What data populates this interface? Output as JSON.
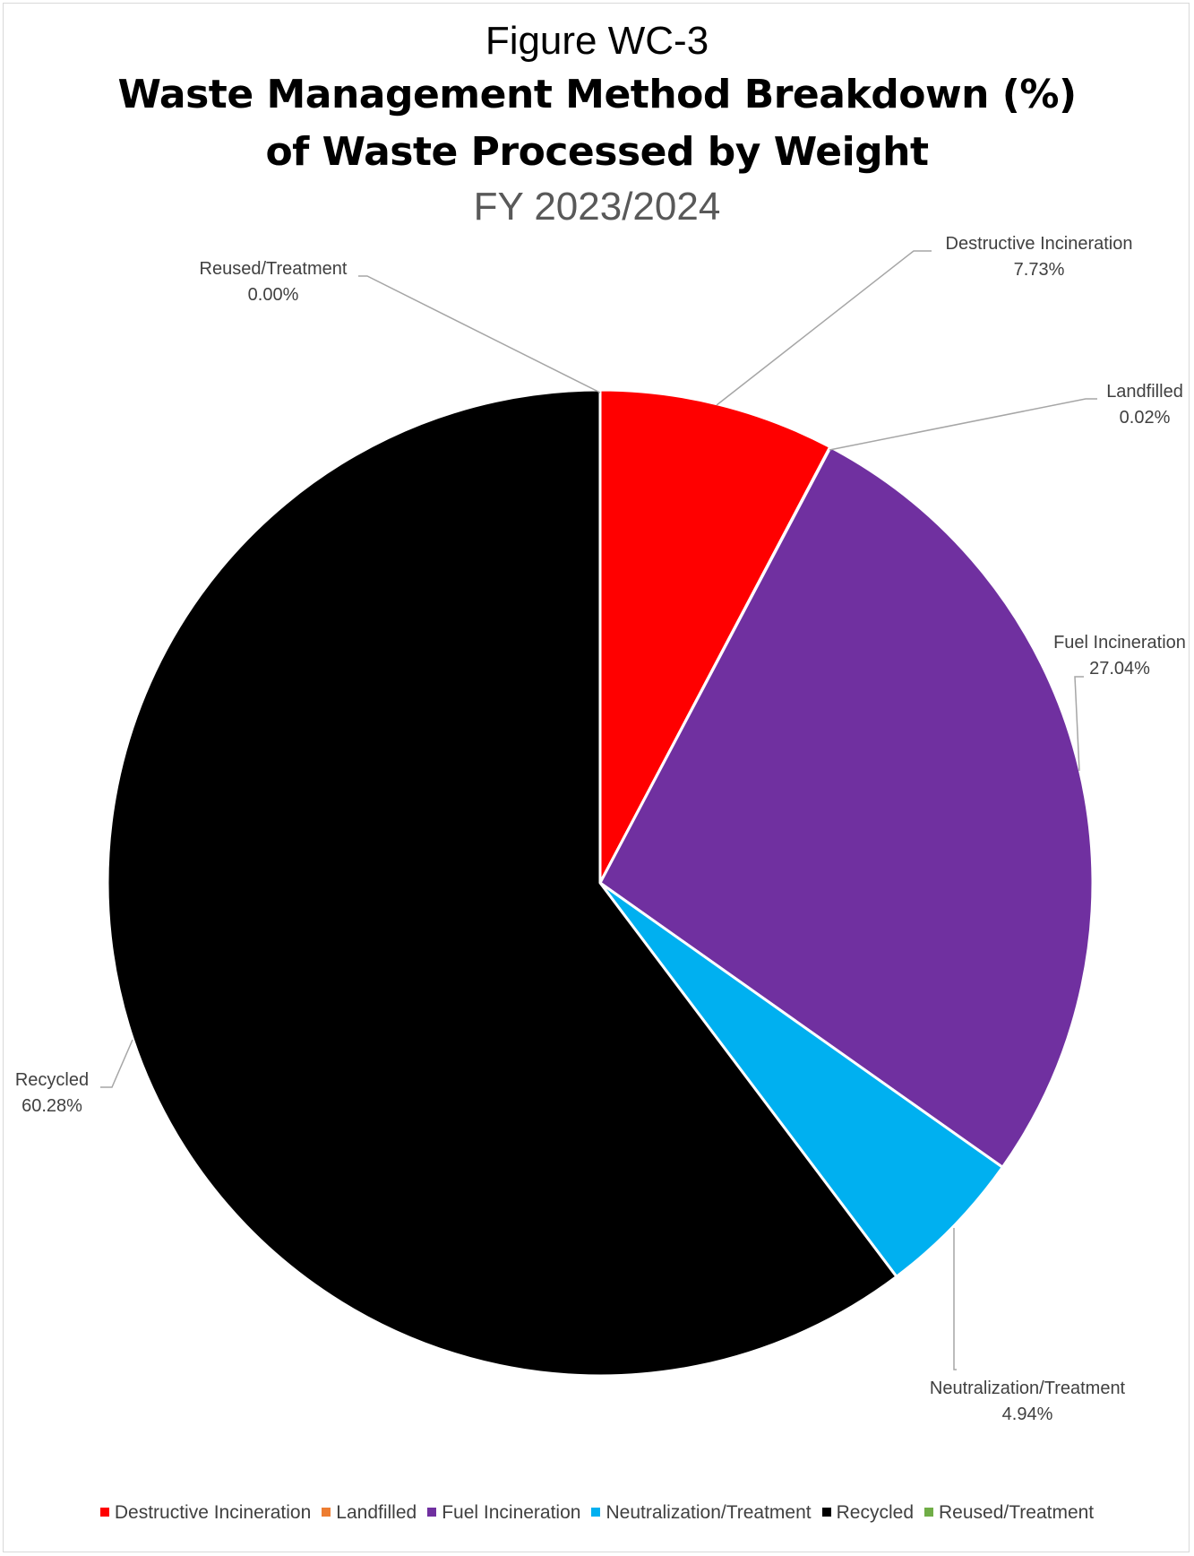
{
  "chart_data": {
    "type": "pie",
    "figure_label": "Figure WC-3",
    "title": "Waste Management Method Breakdown (%) of Waste Processed by Weight",
    "title_lines": [
      "Waste Management Method Breakdown (%)",
      "of Waste Processed by Weight"
    ],
    "subtitle": "FY 2023/2024",
    "legend_position": "bottom",
    "unit": "%",
    "slices": [
      {
        "label": "Destructive Incineration",
        "value": 7.73,
        "display": "7.73%",
        "color": "#ff0000"
      },
      {
        "label": "Landfilled",
        "value": 0.02,
        "display": "0.02%",
        "color": "#ed7d31"
      },
      {
        "label": "Fuel Incineration",
        "value": 27.04,
        "display": "27.04%",
        "color": "#7030a0"
      },
      {
        "label": "Neutralization/Treatment",
        "value": 4.94,
        "display": "4.94%",
        "color": "#00b0f0"
      },
      {
        "label": "Recycled",
        "value": 60.28,
        "display": "60.28%",
        "color": "#000000"
      },
      {
        "label": "Reused/Treatment",
        "value": 0.0,
        "display": "0.00%",
        "color": "#70ad47"
      }
    ]
  }
}
